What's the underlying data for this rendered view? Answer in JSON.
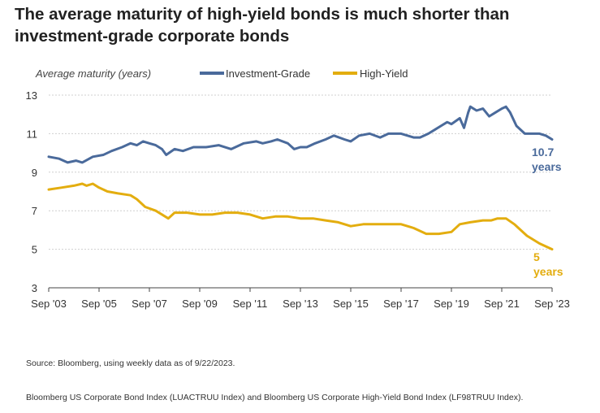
{
  "title": "The average maturity of high-yield bonds is much shorter than investment-grade corporate bonds",
  "footnotes": {
    "source": "Source: Bloomberg, using weekly data as of 9/22/2023.",
    "indexes": "Bloomberg US Corporate Bond Index (LUACTRUU Index) and Bloomberg US Corporate High-Yield Bond Index (LF98TRUU Index)."
  },
  "chart_data": {
    "type": "line",
    "ylabel": "Average maturity (years)",
    "ylim": [
      3,
      13
    ],
    "yticks": [
      3,
      5,
      7,
      9,
      11,
      13
    ],
    "xlim": [
      "2003-09",
      "2023-09"
    ],
    "xticks": [
      {
        "date": "2003-09",
        "label": "Sep '03"
      },
      {
        "date": "2005-09",
        "label": "Sep '05"
      },
      {
        "date": "2007-09",
        "label": "Sep '07"
      },
      {
        "date": "2009-09",
        "label": "Sep '09"
      },
      {
        "date": "2011-09",
        "label": "Sep '11"
      },
      {
        "date": "2013-09",
        "label": "Sep '13"
      },
      {
        "date": "2015-09",
        "label": "Sep '15"
      },
      {
        "date": "2017-09",
        "label": "Sep '17"
      },
      {
        "date": "2019-09",
        "label": "Sep '19"
      },
      {
        "date": "2021-09",
        "label": "Sep '21"
      },
      {
        "date": "2023-09",
        "label": "Sep '23"
      }
    ],
    "grid": "horizontal",
    "legend": "top",
    "series": [
      {
        "name": "Investment-Grade",
        "color": "#4a6a9b",
        "end_label": [
          "10.7",
          "years"
        ],
        "points": [
          [
            "2003-09",
            9.8
          ],
          [
            "2004-02",
            9.7
          ],
          [
            "2004-06",
            9.5
          ],
          [
            "2004-10",
            9.6
          ],
          [
            "2005-01",
            9.5
          ],
          [
            "2005-06",
            9.8
          ],
          [
            "2005-11",
            9.9
          ],
          [
            "2006-03",
            10.1
          ],
          [
            "2006-08",
            10.3
          ],
          [
            "2006-12",
            10.5
          ],
          [
            "2007-03",
            10.4
          ],
          [
            "2007-06",
            10.6
          ],
          [
            "2007-09",
            10.5
          ],
          [
            "2007-12",
            10.4
          ],
          [
            "2008-03",
            10.2
          ],
          [
            "2008-05",
            9.9
          ],
          [
            "2008-09",
            10.2
          ],
          [
            "2009-01",
            10.1
          ],
          [
            "2009-06",
            10.3
          ],
          [
            "2009-12",
            10.3
          ],
          [
            "2010-06",
            10.4
          ],
          [
            "2010-12",
            10.2
          ],
          [
            "2011-06",
            10.5
          ],
          [
            "2011-12",
            10.6
          ],
          [
            "2012-03",
            10.5
          ],
          [
            "2012-07",
            10.6
          ],
          [
            "2012-10",
            10.7
          ],
          [
            "2013-03",
            10.5
          ],
          [
            "2013-06",
            10.2
          ],
          [
            "2013-09",
            10.3
          ],
          [
            "2013-12",
            10.3
          ],
          [
            "2014-04",
            10.5
          ],
          [
            "2014-09",
            10.7
          ],
          [
            "2015-01",
            10.9
          ],
          [
            "2015-06",
            10.7
          ],
          [
            "2015-09",
            10.6
          ],
          [
            "2016-01",
            10.9
          ],
          [
            "2016-06",
            11.0
          ],
          [
            "2016-11",
            10.8
          ],
          [
            "2017-03",
            11.0
          ],
          [
            "2017-09",
            11.0
          ],
          [
            "2018-03",
            10.8
          ],
          [
            "2018-06",
            10.8
          ],
          [
            "2018-10",
            11.0
          ],
          [
            "2019-01",
            11.2
          ],
          [
            "2019-04",
            11.4
          ],
          [
            "2019-07",
            11.6
          ],
          [
            "2019-09",
            11.5
          ],
          [
            "2020-01",
            11.8
          ],
          [
            "2020-03",
            11.3
          ],
          [
            "2020-05",
            12.1
          ],
          [
            "2020-06",
            12.4
          ],
          [
            "2020-09",
            12.2
          ],
          [
            "2020-12",
            12.3
          ],
          [
            "2021-03",
            11.9
          ],
          [
            "2021-06",
            12.1
          ],
          [
            "2021-09",
            12.3
          ],
          [
            "2021-11",
            12.4
          ],
          [
            "2022-01",
            12.1
          ],
          [
            "2022-04",
            11.4
          ],
          [
            "2022-08",
            11.0
          ],
          [
            "2022-12",
            11.0
          ],
          [
            "2023-03",
            11.0
          ],
          [
            "2023-06",
            10.9
          ],
          [
            "2023-09",
            10.7
          ]
        ]
      },
      {
        "name": "High-Yield",
        "color": "#e3ad0f",
        "end_label": [
          "5",
          "years"
        ],
        "points": [
          [
            "2003-09",
            8.1
          ],
          [
            "2004-03",
            8.2
          ],
          [
            "2004-09",
            8.3
          ],
          [
            "2005-01",
            8.4
          ],
          [
            "2005-03",
            8.3
          ],
          [
            "2005-06",
            8.4
          ],
          [
            "2005-09",
            8.2
          ],
          [
            "2006-01",
            8.0
          ],
          [
            "2006-06",
            7.9
          ],
          [
            "2006-12",
            7.8
          ],
          [
            "2007-03",
            7.6
          ],
          [
            "2007-07",
            7.2
          ],
          [
            "2007-12",
            7.0
          ],
          [
            "2008-06",
            6.6
          ],
          [
            "2008-09",
            6.9
          ],
          [
            "2009-03",
            6.9
          ],
          [
            "2009-09",
            6.8
          ],
          [
            "2010-03",
            6.8
          ],
          [
            "2010-09",
            6.9
          ],
          [
            "2011-03",
            6.9
          ],
          [
            "2011-09",
            6.8
          ],
          [
            "2012-03",
            6.6
          ],
          [
            "2012-09",
            6.7
          ],
          [
            "2013-03",
            6.7
          ],
          [
            "2013-09",
            6.6
          ],
          [
            "2014-03",
            6.6
          ],
          [
            "2014-09",
            6.5
          ],
          [
            "2015-03",
            6.4
          ],
          [
            "2015-09",
            6.2
          ],
          [
            "2016-03",
            6.3
          ],
          [
            "2016-09",
            6.3
          ],
          [
            "2017-03",
            6.3
          ],
          [
            "2017-09",
            6.3
          ],
          [
            "2018-03",
            6.1
          ],
          [
            "2018-09",
            5.8
          ],
          [
            "2019-03",
            5.8
          ],
          [
            "2019-09",
            5.9
          ],
          [
            "2020-01",
            6.3
          ],
          [
            "2020-06",
            6.4
          ],
          [
            "2020-12",
            6.5
          ],
          [
            "2021-04",
            6.5
          ],
          [
            "2021-07",
            6.6
          ],
          [
            "2021-11",
            6.6
          ],
          [
            "2022-03",
            6.3
          ],
          [
            "2022-09",
            5.7
          ],
          [
            "2023-03",
            5.3
          ],
          [
            "2023-09",
            5.0
          ]
        ]
      }
    ]
  }
}
